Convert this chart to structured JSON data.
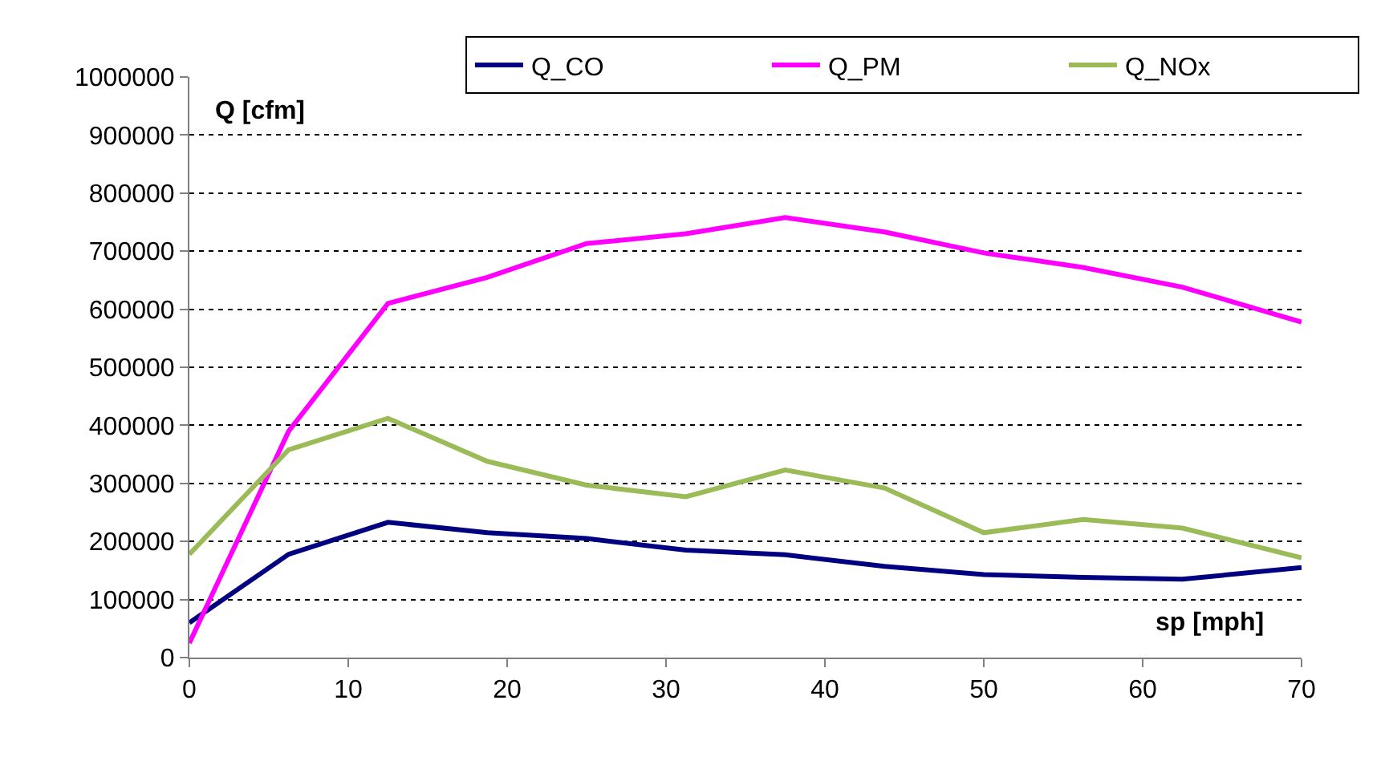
{
  "chart_data": {
    "type": "line",
    "xlabel": "sp [mph]",
    "ylabel": "Q [cfm]",
    "x": [
      0,
      6.25,
      12.5,
      18.75,
      25,
      31.25,
      37.5,
      43.75,
      50,
      56.25,
      62.5,
      70
    ],
    "series": [
      {
        "name": "Q_CO",
        "color": "#000080",
        "values": [
          60000,
          178000,
          233000,
          215000,
          205000,
          185000,
          177000,
          157000,
          143000,
          138000,
          135000,
          155000
        ]
      },
      {
        "name": "Q_PM",
        "color": "#ff00ff",
        "values": [
          25000,
          390000,
          610000,
          655000,
          713000,
          730000,
          758000,
          733000,
          697000,
          672000,
          638000,
          578000
        ]
      },
      {
        "name": "Q_NOx",
        "color": "#9bbb59",
        "values": [
          178000,
          358000,
          412000,
          338000,
          297000,
          277000,
          323000,
          292000,
          215000,
          238000,
          223000,
          172000
        ]
      }
    ],
    "xlim": [
      0,
      70
    ],
    "xticks": [
      0,
      10,
      20,
      30,
      40,
      50,
      60,
      70
    ],
    "ylim": [
      0,
      1000000
    ],
    "yticks": [
      0,
      100000,
      200000,
      300000,
      400000,
      500000,
      600000,
      700000,
      800000,
      900000,
      1000000
    ],
    "grid": "y",
    "legend": "top",
    "marker": "none",
    "line_style": "solid"
  }
}
